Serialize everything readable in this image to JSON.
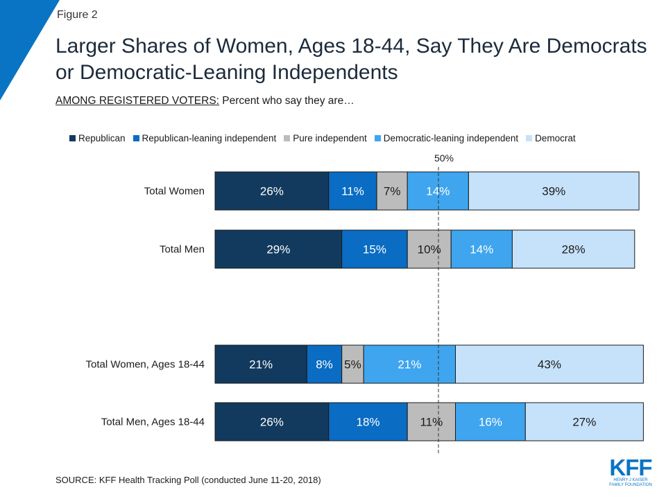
{
  "figure_label": "Figure 2",
  "title": "Larger Shares of Women, Ages 18-44, Say They Are Democrats or Democratic-Leaning Independents",
  "subtitle": {
    "underlined": "AMONG REGISTERED VOTERS:",
    "rest": " Percent who say they are…"
  },
  "source": "SOURCE: KFF Health Tracking Poll (conducted June 11-20, 2018)",
  "logo": {
    "letters": "KFF",
    "line1": "HENRY J KAISER",
    "line2": "FAMILY FOUNDATION"
  },
  "chart_data": {
    "type": "bar",
    "orientation": "horizontal",
    "stacked": true,
    "categories": [
      "Total Women",
      "Total Men",
      "Total Women, Ages 18-44",
      "Total Men, Ages 18-44"
    ],
    "series": [
      {
        "name": "Republican",
        "color": "#123a5e",
        "values": [
          26,
          29,
          21,
          26
        ],
        "labels": [
          "26%",
          "29%",
          "21%",
          "26%"
        ]
      },
      {
        "name": "Republican-leaning independent",
        "color": "#0a6cc2",
        "values": [
          11,
          15,
          8,
          18
        ],
        "labels": [
          "11%",
          "15%",
          "8%",
          "18%"
        ]
      },
      {
        "name": "Pure independent",
        "color": "#bcbcbc",
        "values": [
          7,
          10,
          5,
          11
        ],
        "labels": [
          "7%",
          "10%",
          "5%",
          "11%"
        ]
      },
      {
        "name": "Democratic-leaning independent",
        "color": "#3fa5ee",
        "values": [
          14,
          14,
          21,
          16
        ],
        "labels": [
          "14%",
          "14%",
          "21%",
          "16%"
        ]
      },
      {
        "name": "Democrat",
        "color": "#c6e2fa",
        "values": [
          39,
          28,
          43,
          27
        ],
        "labels": [
          "39%",
          "28%",
          "43%",
          "27%"
        ]
      }
    ],
    "reference_line": {
      "value": 50,
      "label": "50%",
      "style": "dashed"
    },
    "xlim": [
      0,
      100
    ],
    "legend_position": "top"
  }
}
